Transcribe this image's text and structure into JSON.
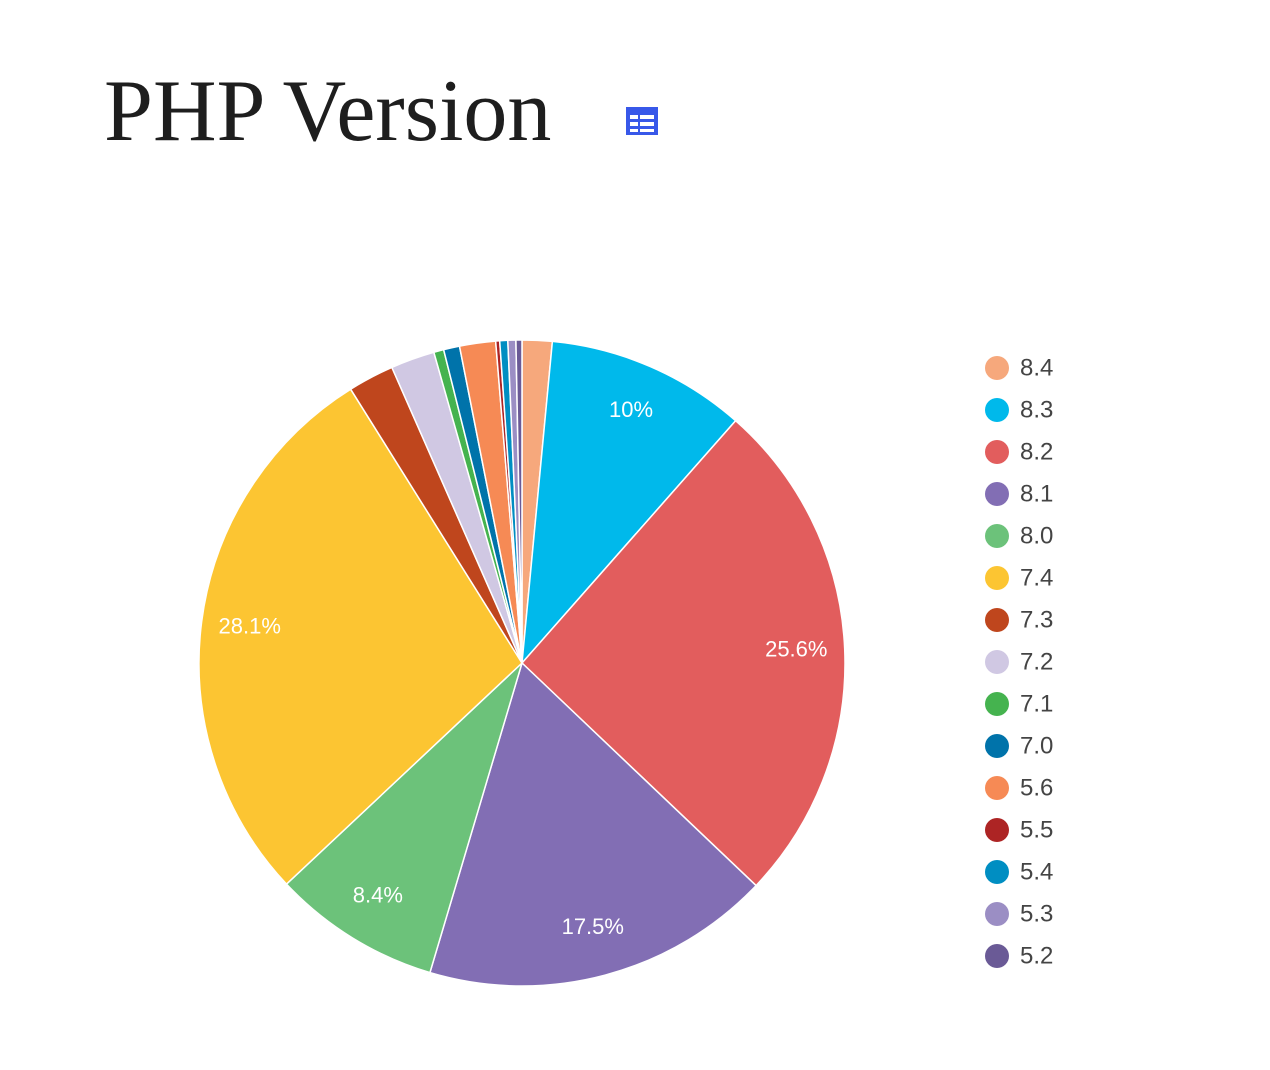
{
  "chart_data": {
    "type": "pie",
    "title": "PHP Version",
    "categories": [
      "8.4",
      "8.3",
      "8.2",
      "8.1",
      "8.0",
      "7.4",
      "7.3",
      "7.2",
      "7.1",
      "7.0",
      "5.6",
      "5.5",
      "5.4",
      "5.3",
      "5.2"
    ],
    "values": [
      1.5,
      10,
      25.6,
      17.5,
      8.4,
      28.1,
      2.3,
      2.2,
      0.5,
      0.8,
      1.8,
      0.2,
      0.4,
      0.4,
      0.3
    ],
    "value_labels": [
      null,
      "10%",
      "25.6%",
      "17.5%",
      "8.4%",
      "28.1%",
      null,
      null,
      null,
      null,
      null,
      null,
      null,
      null,
      null
    ],
    "colors": [
      "#f6a87c",
      "#00b9eb",
      "#e25d5d",
      "#826eb4",
      "#6cc27a",
      "#fcc532",
      "#bf461d",
      "#d0c8e3",
      "#45b34f",
      "#0073aa",
      "#f68a55",
      "#ad2424",
      "#008ec2",
      "#9b8ec4",
      "#6a5a96"
    ],
    "legend": "right"
  }
}
